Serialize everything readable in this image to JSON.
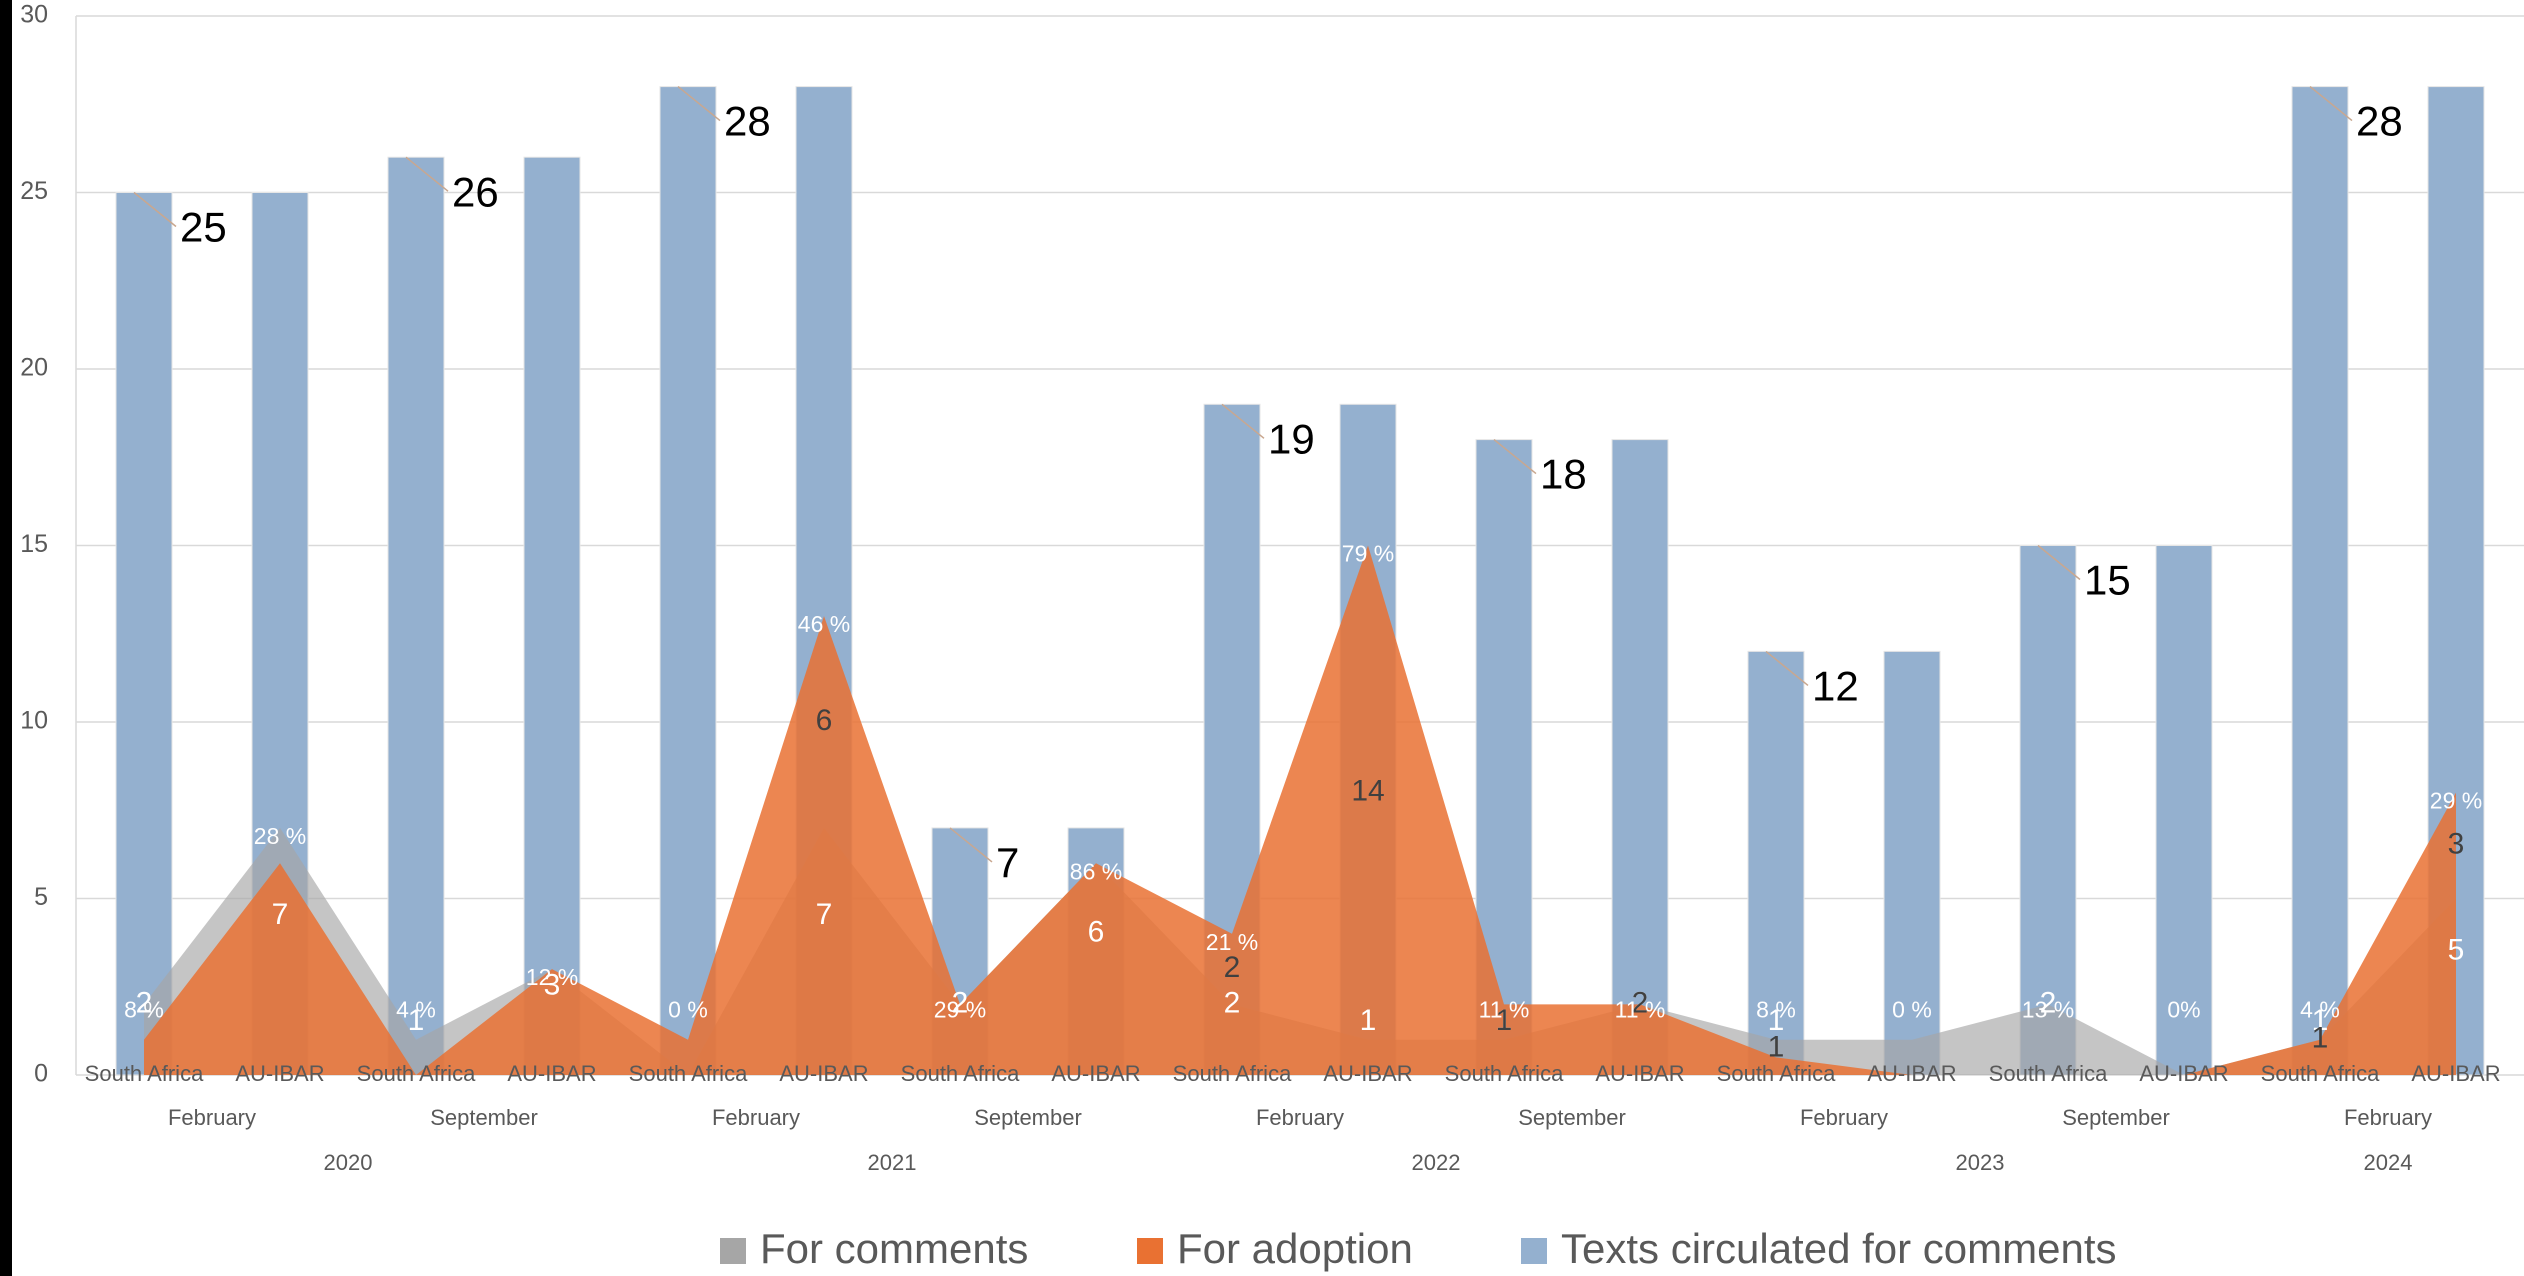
{
  "chart_data": {
    "type": "combo",
    "categories": [
      "South Africa",
      "AU-IBAR",
      "South Africa",
      "AU-IBAR",
      "South Africa",
      "AU-IBAR",
      "South Africa",
      "AU-IBAR",
      "South Africa",
      "AU-IBAR",
      "South Africa",
      "AU-IBAR",
      "South Africa",
      "AU-IBAR",
      "South Africa",
      "AU-IBAR",
      "South Africa",
      "AU-IBAR"
    ],
    "months": [
      "February",
      "September",
      "February",
      "September",
      "February",
      "September",
      "February",
      "September",
      "February"
    ],
    "years": [
      "2020",
      "2021",
      "2022",
      "2023",
      "2024"
    ],
    "series": [
      {
        "name": "For comments",
        "type": "area",
        "color": "#a6a6a6",
        "values": [
          2,
          7,
          1,
          3,
          0,
          7,
          2,
          6,
          2,
          1,
          1,
          2,
          1,
          1,
          2,
          0,
          1,
          5
        ],
        "value_labels": [
          "2",
          "7",
          "1",
          "3",
          null,
          "7",
          "2",
          "6",
          "2",
          "1",
          "1",
          "2",
          "1",
          null,
          "2",
          null,
          "1",
          "5"
        ]
      },
      {
        "name": "For adoption",
        "type": "area",
        "color": "#e97132",
        "values": [
          1,
          6,
          0,
          3,
          1,
          13,
          2,
          6,
          4,
          15,
          2,
          2,
          0.5,
          0,
          0,
          0,
          1,
          8
        ]
      },
      {
        "name": "Texts circulated for comments",
        "type": "bar",
        "color": "#94b0cf",
        "values": [
          25,
          25,
          26,
          26,
          28,
          28,
          7,
          7,
          19,
          19,
          18,
          18,
          12,
          12,
          15,
          15,
          28,
          28
        ]
      }
    ],
    "inner_labels": [
      null,
      null,
      null,
      null,
      null,
      "6",
      null,
      null,
      "2",
      "14",
      "1",
      "2",
      "1",
      null,
      null,
      null,
      "1",
      "3"
    ],
    "shares": {
      "values": [
        8,
        28,
        4,
        12,
        0,
        46,
        29,
        86,
        21,
        79,
        11,
        11,
        8,
        0,
        13,
        0,
        4,
        29
      ],
      "value_labels": [
        "8 %",
        "28 %",
        "4 %",
        "12 %",
        "0 %",
        "46 %",
        "29 %",
        "86 %",
        "21 %",
        "79 %",
        "11 %",
        "11 %",
        "8 %",
        "0 %",
        "13 %",
        "0%",
        "4 %",
        "29 %"
      ]
    },
    "ylim": [
      0,
      30
    ],
    "yticks": [
      0,
      5,
      10,
      15,
      20,
      25,
      30
    ],
    "grid": true,
    "legend": "bottom"
  }
}
